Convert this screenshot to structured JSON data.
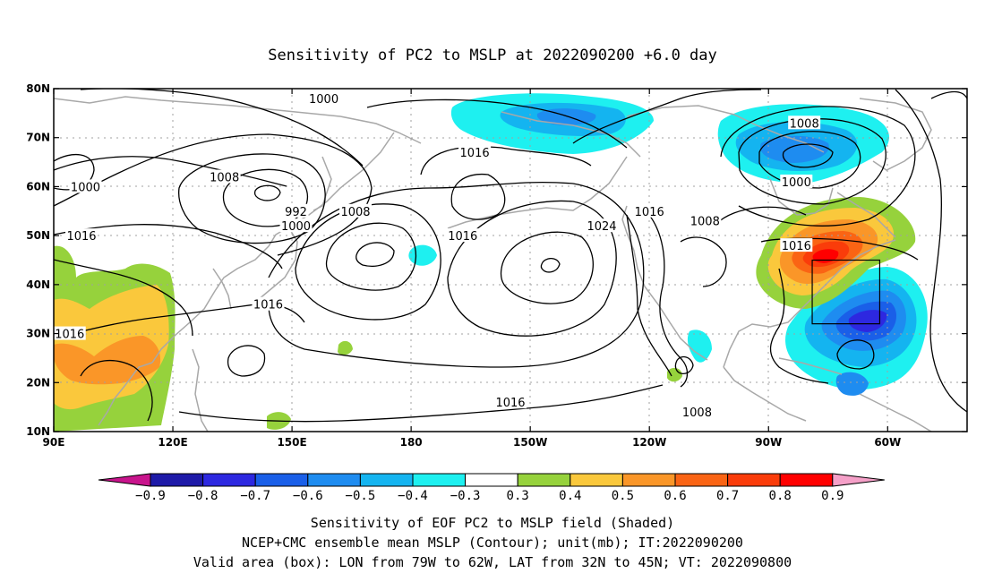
{
  "title": "Sensitivity of PC2 to MSLP at 2022090200 +6.0 day",
  "lat_ticks": [
    "80N",
    "70N",
    "60N",
    "50N",
    "40N",
    "30N",
    "20N",
    "10N"
  ],
  "lon_ticks": [
    "90E",
    "120E",
    "150E",
    "180",
    "150W",
    "120W",
    "90W",
    "60W"
  ],
  "map_bounds": {
    "lon_min": 90,
    "lon_max": 320,
    "lat_min": 10,
    "lat_max": 80
  },
  "valid_box": {
    "lon_from": "79W",
    "lon_to": "62W",
    "lat_from": "32N",
    "lat_to": "45N"
  },
  "isobar_labels": [
    {
      "text": "1000",
      "lon": 158,
      "lat": 78
    },
    {
      "text": "1000",
      "lon": 98,
      "lat": 60
    },
    {
      "text": "1008",
      "lon": 133,
      "lat": 62
    },
    {
      "text": "992",
      "lon": 151,
      "lat": 55
    },
    {
      "text": "1000",
      "lon": 151,
      "lat": 52
    },
    {
      "text": "1008",
      "lon": 166,
      "lat": 55
    },
    {
      "text": "1016",
      "lon": 97,
      "lat": 50
    },
    {
      "text": "1016",
      "lon": 196,
      "lat": 67
    },
    {
      "text": "1016",
      "lon": 193,
      "lat": 50
    },
    {
      "text": "1024",
      "lon": 228,
      "lat": 52
    },
    {
      "text": "1016",
      "lon": 240,
      "lat": 55
    },
    {
      "text": "1008",
      "lon": 254,
      "lat": 53
    },
    {
      "text": "1008",
      "lon": 279,
      "lat": 73
    },
    {
      "text": "1000",
      "lon": 277,
      "lat": 61
    },
    {
      "text": "1016",
      "lon": 277,
      "lat": 48
    },
    {
      "text": "1016",
      "lon": 144,
      "lat": 36
    },
    {
      "text": "1016",
      "lon": 94,
      "lat": 30
    },
    {
      "text": "1016",
      "lon": 205,
      "lat": 16
    },
    {
      "text": "1008",
      "lon": 252,
      "lat": 14
    }
  ],
  "colorbar": {
    "labels": [
      "-0.9",
      "-0.8",
      "-0.7",
      "-0.6",
      "-0.5",
      "-0.4",
      "-0.3",
      "0.3",
      "0.4",
      "0.5",
      "0.6",
      "0.7",
      "0.8",
      "0.9"
    ],
    "colors": [
      "#1e1aa8",
      "#2d28e0",
      "#1a5fe8",
      "#1e8cf0",
      "#14b4f0",
      "#1ef0f0",
      "#ffffff",
      "#96d23c",
      "#fac83c",
      "#fa9628",
      "#fa6414",
      "#fa3c0a",
      "#ff0000"
    ],
    "low_end_color": "#c8148c",
    "high_end_color": "#f5a0c8"
  },
  "caption_lines": [
    "Sensitivity of EOF PC2 to MSLP field (Shaded)",
    "NCEP+CMC ensemble mean MSLP (Contour); unit(mb); IT:2022090200",
    "Valid area (box): LON from 79W to 62W, LAT from 32N to 45N; VT: 2022090800"
  ]
}
